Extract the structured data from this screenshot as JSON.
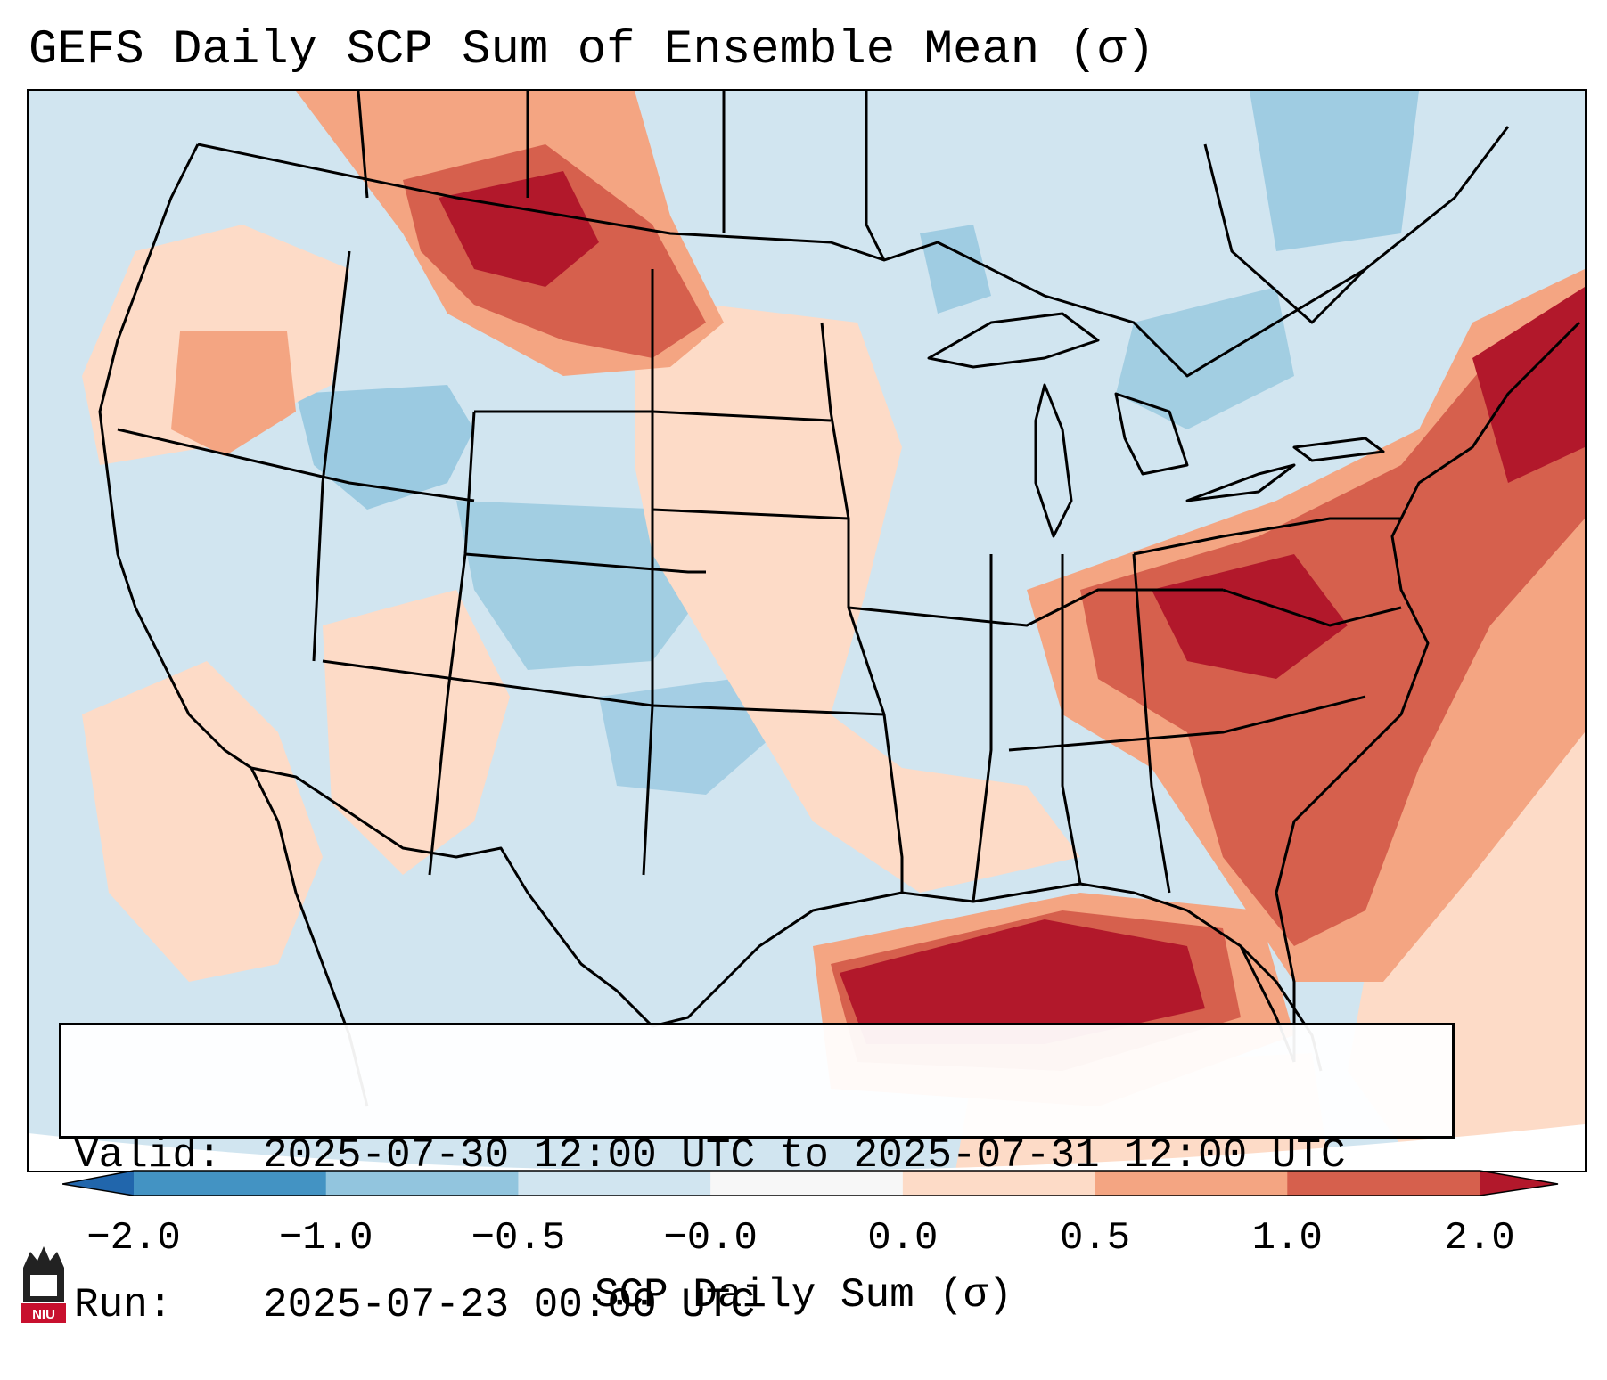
{
  "title": "GEFS Daily SCP Sum of Ensemble Mean (σ)",
  "info": {
    "valid_label": "Valid:",
    "valid_value": "2025-07-30 12:00 UTC to 2025-07-31 12:00 UTC",
    "run_label": "Run:",
    "run_value": "2025-07-23 00:00 UTC"
  },
  "colorbar": {
    "label": "SCP Daily Sum (σ)",
    "ticks": [
      "−2.0",
      "−1.0",
      "−0.5",
      "−0.0",
      "0.0",
      "0.5",
      "1.0",
      "2.0"
    ],
    "colors": [
      "#2166ac",
      "#4393c3",
      "#92c5de",
      "#d1e5f0",
      "#f7f7f7",
      "#fddbc7",
      "#f4a582",
      "#d6604d",
      "#b2182b"
    ]
  },
  "map": {
    "background_color": "#d1e5f0",
    "region": "Contiguous United States"
  },
  "logo": {
    "text": "NIU",
    "color": "#c8102e"
  }
}
